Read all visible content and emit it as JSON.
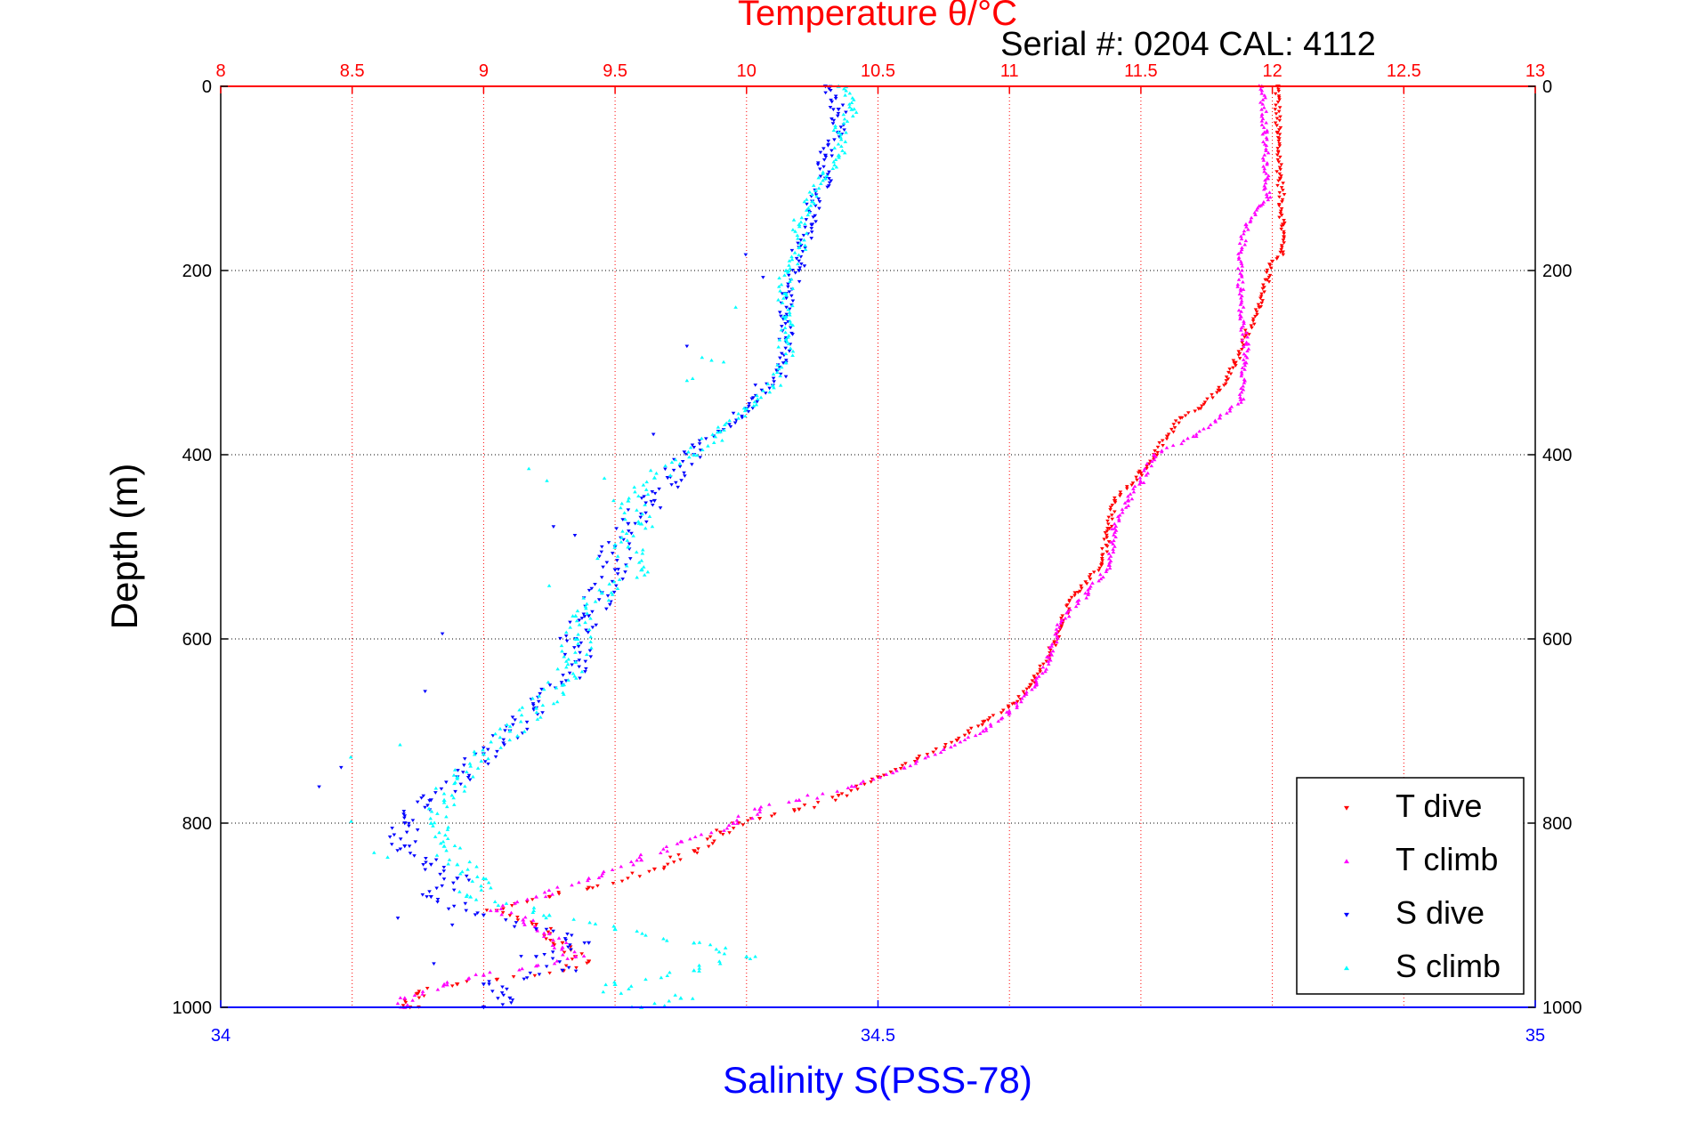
{
  "chart_data": {
    "type": "scatter",
    "title": "Temperature θ/°C",
    "subtitle": "Serial #: 0204  CAL: 4112",
    "ylabel": "Depth (m)",
    "xlabel": "Salinity S(PSS-78)",
    "ylim": [
      0,
      1000
    ],
    "y_inverted": true,
    "salinity_lim": [
      34,
      35
    ],
    "temperature_lim": [
      8,
      13
    ],
    "y_ticks": [
      "0",
      "200",
      "400",
      "600",
      "800",
      "1000"
    ],
    "salinity_ticks": [
      "34",
      "34.5",
      "35"
    ],
    "temperature_ticks": [
      "8",
      "8.5",
      "9",
      "9.5",
      "10",
      "10.5",
      "11",
      "11.5",
      "12",
      "12.5",
      "13"
    ],
    "grid": true,
    "legend_position": "bottom-right",
    "series": [
      {
        "name": "T dive",
        "axis": "temperature",
        "color": "#ff0000",
        "marker": "down-triangle",
        "points": [
          [
            0,
            12.02
          ],
          [
            50,
            12.02
          ],
          [
            100,
            12.03
          ],
          [
            150,
            12.04
          ],
          [
            180,
            12.04
          ],
          [
            190,
            12.0
          ],
          [
            210,
            11.98
          ],
          [
            240,
            11.95
          ],
          [
            270,
            11.9
          ],
          [
            300,
            11.86
          ],
          [
            330,
            11.8
          ],
          [
            350,
            11.72
          ],
          [
            360,
            11.65
          ],
          [
            380,
            11.6
          ],
          [
            400,
            11.55
          ],
          [
            420,
            11.5
          ],
          [
            450,
            11.4
          ],
          [
            480,
            11.38
          ],
          [
            520,
            11.35
          ],
          [
            550,
            11.25
          ],
          [
            580,
            11.2
          ],
          [
            620,
            11.15
          ],
          [
            650,
            11.08
          ],
          [
            670,
            11.02
          ],
          [
            690,
            10.9
          ],
          [
            710,
            10.8
          ],
          [
            730,
            10.65
          ],
          [
            750,
            10.5
          ],
          [
            770,
            10.35
          ],
          [
            785,
            10.2
          ],
          [
            795,
            10.05
          ],
          [
            800,
            9.97
          ],
          [
            810,
            9.9
          ],
          [
            830,
            9.8
          ],
          [
            850,
            9.65
          ],
          [
            870,
            9.4
          ],
          [
            880,
            9.25
          ],
          [
            895,
            9.05
          ],
          [
            910,
            9.2
          ],
          [
            920,
            9.25
          ],
          [
            930,
            9.3
          ],
          [
            945,
            9.35
          ],
          [
            950,
            9.4
          ],
          [
            960,
            9.3
          ],
          [
            970,
            9.05
          ],
          [
            975,
            8.9
          ],
          [
            985,
            8.75
          ],
          [
            1000,
            8.72
          ]
        ]
      },
      {
        "name": "T climb",
        "axis": "temperature",
        "color": "#ff00ff",
        "marker": "up-triangle",
        "points": [
          [
            0,
            11.96
          ],
          [
            50,
            11.97
          ],
          [
            100,
            11.98
          ],
          [
            120,
            11.98
          ],
          [
            130,
            11.95
          ],
          [
            150,
            11.9
          ],
          [
            180,
            11.88
          ],
          [
            220,
            11.88
          ],
          [
            250,
            11.88
          ],
          [
            280,
            11.9
          ],
          [
            300,
            11.9
          ],
          [
            340,
            11.88
          ],
          [
            360,
            11.8
          ],
          [
            380,
            11.7
          ],
          [
            400,
            11.55
          ],
          [
            430,
            11.5
          ],
          [
            450,
            11.45
          ],
          [
            480,
            11.4
          ],
          [
            520,
            11.38
          ],
          [
            550,
            11.3
          ],
          [
            580,
            11.2
          ],
          [
            620,
            11.15
          ],
          [
            650,
            11.1
          ],
          [
            680,
            11.0
          ],
          [
            700,
            10.9
          ],
          [
            720,
            10.75
          ],
          [
            740,
            10.6
          ],
          [
            760,
            10.4
          ],
          [
            775,
            10.2
          ],
          [
            785,
            10.05
          ],
          [
            800,
            9.95
          ],
          [
            820,
            9.75
          ],
          [
            840,
            9.6
          ],
          [
            860,
            9.4
          ],
          [
            880,
            9.2
          ],
          [
            895,
            9.05
          ],
          [
            905,
            9.15
          ],
          [
            920,
            9.25
          ],
          [
            935,
            9.3
          ],
          [
            945,
            9.35
          ],
          [
            955,
            9.2
          ],
          [
            965,
            9.0
          ],
          [
            975,
            8.85
          ],
          [
            990,
            8.7
          ],
          [
            1000,
            8.7
          ]
        ]
      },
      {
        "name": "S dive",
        "axis": "salinity",
        "color": "#0000ff",
        "marker": "down-triangle",
        "points": [
          [
            0,
            34.46
          ],
          [
            25,
            34.47
          ],
          [
            50,
            34.47
          ],
          [
            75,
            34.46
          ],
          [
            100,
            34.46
          ],
          [
            125,
            34.45
          ],
          [
            150,
            34.45
          ],
          [
            175,
            34.44
          ],
          [
            200,
            34.44
          ],
          [
            225,
            34.43
          ],
          [
            250,
            34.43
          ],
          [
            275,
            34.43
          ],
          [
            300,
            34.43
          ],
          [
            325,
            34.42
          ],
          [
            350,
            34.4
          ],
          [
            375,
            34.38
          ],
          [
            400,
            34.36
          ],
          [
            425,
            34.34
          ],
          [
            450,
            34.33
          ],
          [
            475,
            34.31
          ],
          [
            500,
            34.3
          ],
          [
            525,
            34.3
          ],
          [
            550,
            34.29
          ],
          [
            575,
            34.28
          ],
          [
            600,
            34.27
          ],
          [
            625,
            34.27
          ],
          [
            650,
            34.26
          ],
          [
            675,
            34.24
          ],
          [
            700,
            34.22
          ],
          [
            725,
            34.2
          ],
          [
            750,
            34.18
          ],
          [
            775,
            34.16
          ],
          [
            800,
            34.14
          ],
          [
            825,
            34.14
          ],
          [
            845,
            34.16
          ],
          [
            860,
            34.18
          ],
          [
            880,
            34.16
          ],
          [
            900,
            34.2
          ],
          [
            915,
            34.24
          ],
          [
            930,
            34.28
          ],
          [
            945,
            34.24
          ],
          [
            960,
            34.26
          ],
          [
            975,
            34.2
          ],
          [
            990,
            34.22
          ],
          [
            1000,
            34.2
          ]
        ]
      },
      {
        "name": "S climb",
        "axis": "salinity",
        "color": "#00ffff",
        "marker": "up-triangle",
        "points": [
          [
            0,
            34.47
          ],
          [
            25,
            34.48
          ],
          [
            50,
            34.47
          ],
          [
            75,
            34.47
          ],
          [
            100,
            34.46
          ],
          [
            125,
            34.45
          ],
          [
            150,
            34.44
          ],
          [
            175,
            34.44
          ],
          [
            200,
            34.43
          ],
          [
            225,
            34.43
          ],
          [
            250,
            34.43
          ],
          [
            275,
            34.43
          ],
          [
            300,
            34.43
          ],
          [
            325,
            34.42
          ],
          [
            350,
            34.4
          ],
          [
            375,
            34.38
          ],
          [
            400,
            34.36
          ],
          [
            425,
            34.33
          ],
          [
            450,
            34.31
          ],
          [
            475,
            34.32
          ],
          [
            500,
            34.31
          ],
          [
            525,
            34.32
          ],
          [
            550,
            34.29
          ],
          [
            575,
            34.27
          ],
          [
            600,
            34.27
          ],
          [
            625,
            34.27
          ],
          [
            650,
            34.26
          ],
          [
            675,
            34.24
          ],
          [
            700,
            34.22
          ],
          [
            725,
            34.2
          ],
          [
            750,
            34.18
          ],
          [
            775,
            34.17
          ],
          [
            800,
            34.16
          ],
          [
            825,
            34.17
          ],
          [
            845,
            34.18
          ],
          [
            860,
            34.2
          ],
          [
            880,
            34.19
          ],
          [
            900,
            34.25
          ],
          [
            915,
            34.3
          ],
          [
            930,
            34.36
          ],
          [
            945,
            34.4
          ],
          [
            960,
            34.36
          ],
          [
            975,
            34.3
          ],
          [
            990,
            34.35
          ],
          [
            1000,
            34.32
          ]
        ]
      }
    ]
  }
}
